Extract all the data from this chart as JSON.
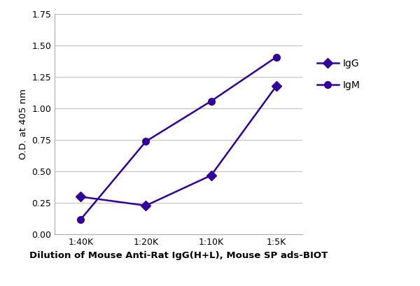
{
  "x_labels": [
    "1:40K",
    "1:20K",
    "1:10K",
    "1:5K"
  ],
  "x_positions": [
    0,
    1,
    2,
    3
  ],
  "IgG_values": [
    0.3,
    0.23,
    0.47,
    1.18
  ],
  "IgM_values": [
    0.12,
    0.74,
    1.06,
    1.41
  ],
  "line_color": "#330099",
  "marker_IgG": "D",
  "marker_IgM": "o",
  "xlabel": "Dilution of Mouse Anti-Rat IgG(H+L), Mouse SP ads-BIOT",
  "ylabel": "O.D. at 405 nm",
  "ylim": [
    0.0,
    1.75
  ],
  "yticks": [
    0.0,
    0.25,
    0.5,
    0.75,
    1.0,
    1.25,
    1.5,
    1.75
  ],
  "legend_labels": [
    "IgG",
    "IgM"
  ],
  "background_color": "#ffffff",
  "grid_color": "#bbbbbb",
  "marker_size": 7,
  "line_width": 1.8,
  "xlabel_fontsize": 9.5,
  "ylabel_fontsize": 9.5,
  "tick_fontsize": 9,
  "legend_fontsize": 10
}
